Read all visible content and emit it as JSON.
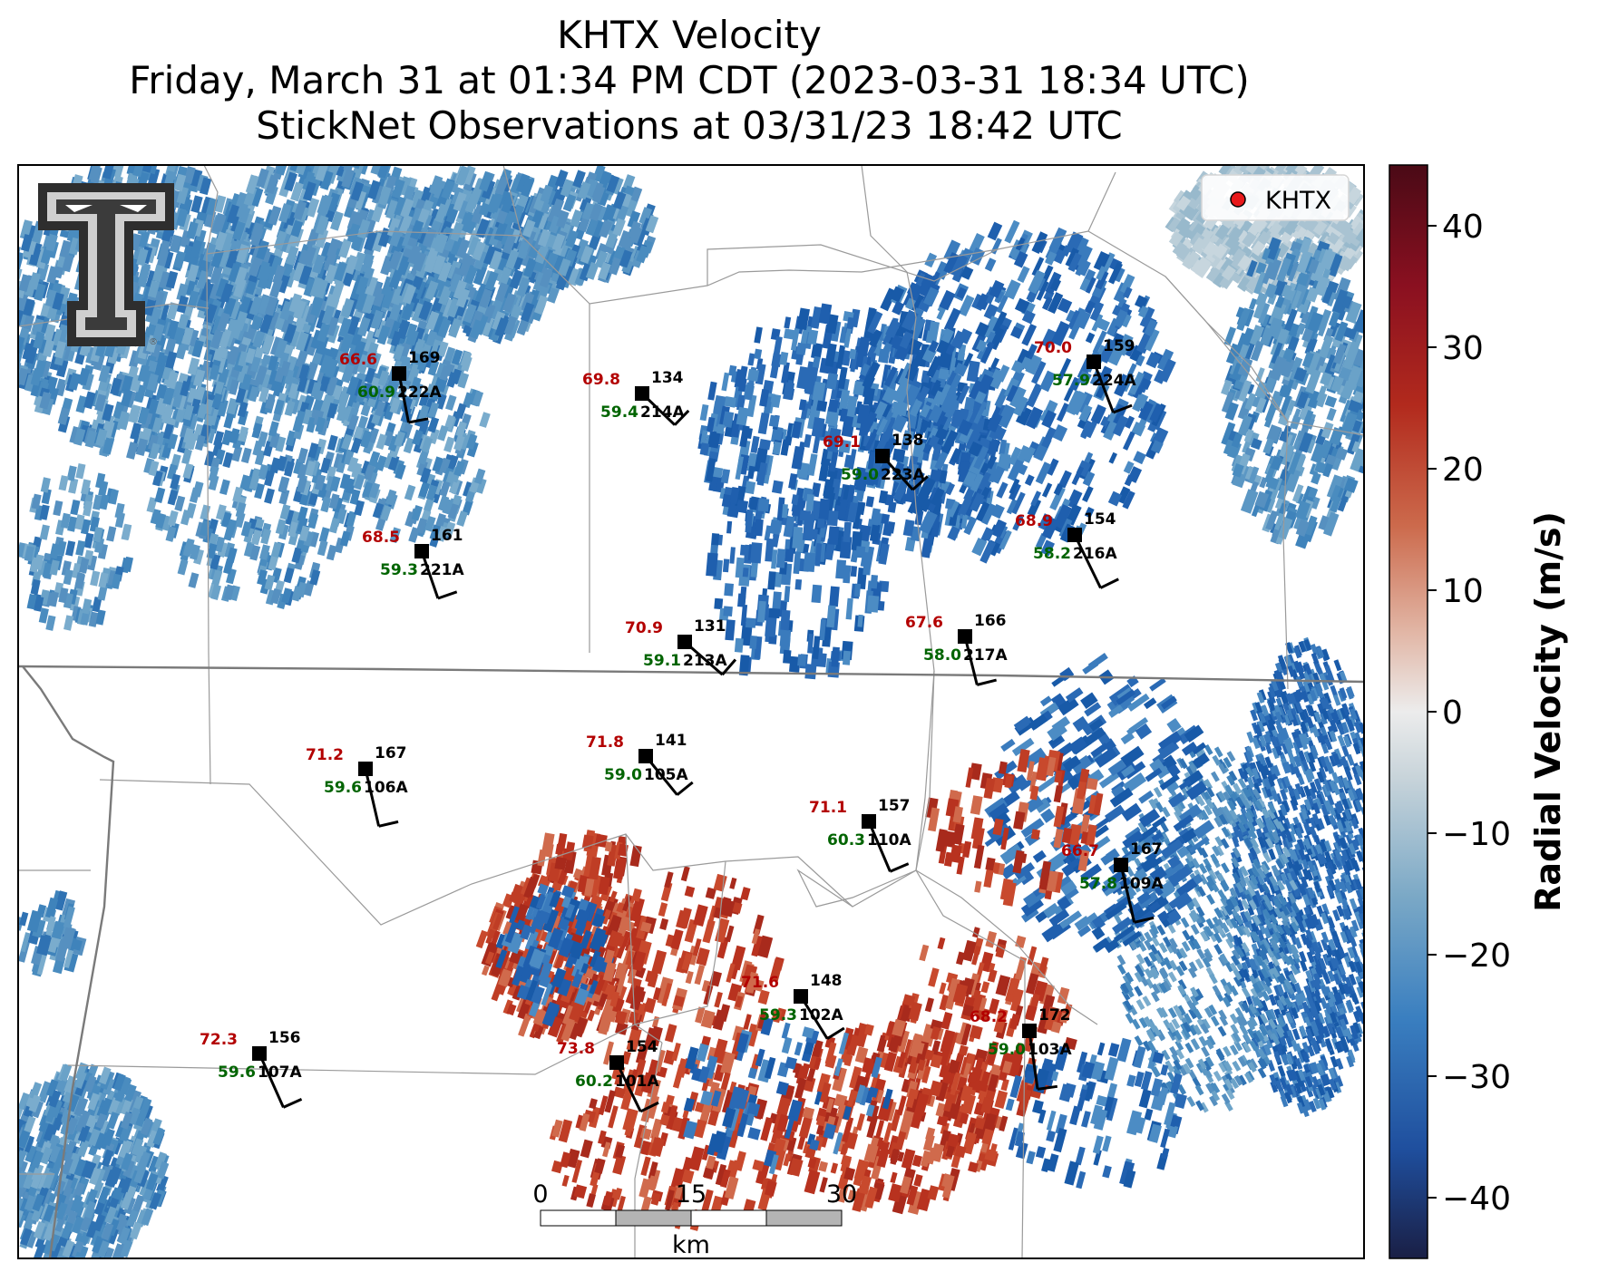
{
  "title_lines": [
    "KHTX Velocity",
    "Friday, March 31 at 01:34 PM CDT (2023-03-31 18:34 UTC)",
    "StickNet Observations at 03/31/23 18:42 UTC"
  ],
  "legend": {
    "label": "KHTX",
    "marker_color": "#e8191b"
  },
  "colors": {
    "temperature": "#b30000",
    "dewpoint": "#006400",
    "station_marker": "#000000",
    "velocity_cmap": [
      "#1a1f45",
      "#1f4f9e",
      "#3a7fc0",
      "#7aa8c6",
      "#c8d4da",
      "#ececec",
      "#e2b8a8",
      "#cc6a4c",
      "#b22a1d",
      "#8a1020",
      "#4a0a16"
    ]
  },
  "scale_bar": {
    "ticks": [
      "0",
      "15",
      "30"
    ],
    "unit": "km"
  },
  "colorbar": {
    "label": "Radial Velocity (m/s)",
    "range": [
      -45,
      45
    ],
    "ticks": [
      {
        "value": 40,
        "label": "40"
      },
      {
        "value": 30,
        "label": "30"
      },
      {
        "value": 20,
        "label": "20"
      },
      {
        "value": 10,
        "label": "10"
      },
      {
        "value": 0,
        "label": "0"
      },
      {
        "value": -10,
        "label": "−10"
      },
      {
        "value": -20,
        "label": "−20"
      },
      {
        "value": -30,
        "label": "−30"
      },
      {
        "value": -40,
        "label": "−40"
      }
    ]
  },
  "stations": [
    {
      "id": "222A",
      "temp": "66.6",
      "dewpoint": "60.9",
      "wind_dir": "169"
    },
    {
      "id": "214A",
      "temp": "69.8",
      "dewpoint": "59.4",
      "wind_dir": "134"
    },
    {
      "id": "224A",
      "temp": "70.0",
      "dewpoint": "57.9",
      "wind_dir": "159"
    },
    {
      "id": "223A",
      "temp": "69.1",
      "dewpoint": "59.0",
      "wind_dir": "138"
    },
    {
      "id": "216A",
      "temp": "68.9",
      "dewpoint": "58.2",
      "wind_dir": "154"
    },
    {
      "id": "221A",
      "temp": "68.5",
      "dewpoint": "59.3",
      "wind_dir": "161"
    },
    {
      "id": "213A",
      "temp": "70.9",
      "dewpoint": "59.1",
      "wind_dir": "131"
    },
    {
      "id": "217A",
      "temp": "67.6",
      "dewpoint": "58.0",
      "wind_dir": "166"
    },
    {
      "id": "106A",
      "temp": "71.2",
      "dewpoint": "59.6",
      "wind_dir": "167"
    },
    {
      "id": "105A",
      "temp": "71.8",
      "dewpoint": "59.0",
      "wind_dir": "141"
    },
    {
      "id": "110A",
      "temp": "71.1",
      "dewpoint": "60.3",
      "wind_dir": "157"
    },
    {
      "id": "109A",
      "temp": "66.7",
      "dewpoint": "57.8",
      "wind_dir": "167"
    },
    {
      "id": "102A",
      "temp": "71.6",
      "dewpoint": "59.3",
      "wind_dir": "148"
    },
    {
      "id": "103A",
      "temp": "68.2",
      "dewpoint": "59.0",
      "wind_dir": "172"
    },
    {
      "id": "107A",
      "temp": "72.3",
      "dewpoint": "59.6",
      "wind_dir": "156"
    },
    {
      "id": "101A",
      "temp": "73.8",
      "dewpoint": "60.2",
      "wind_dir": "154"
    }
  ]
}
